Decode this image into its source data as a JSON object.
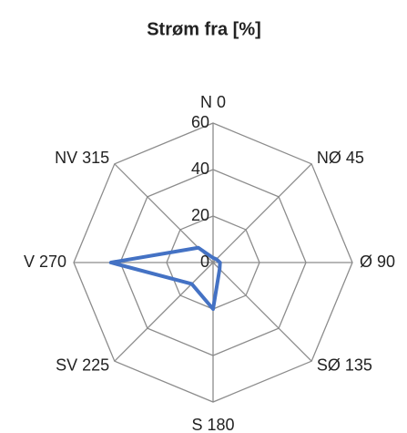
{
  "chart_data": {
    "type": "radar",
    "title": "Strøm fra [%]",
    "categories": [
      "N 0",
      "NØ 45",
      "Ø 90",
      "SØ 135",
      "S 180",
      "SV 225",
      "V 270",
      "NV 315"
    ],
    "series": [
      {
        "name": "Strøm",
        "color": "#4472c4",
        "values": [
          2,
          2,
          3,
          4,
          20,
          13,
          44,
          9
        ]
      }
    ],
    "ylim": [
      0,
      60
    ],
    "yticks": [
      0,
      20,
      40,
      60
    ],
    "grid": true
  }
}
